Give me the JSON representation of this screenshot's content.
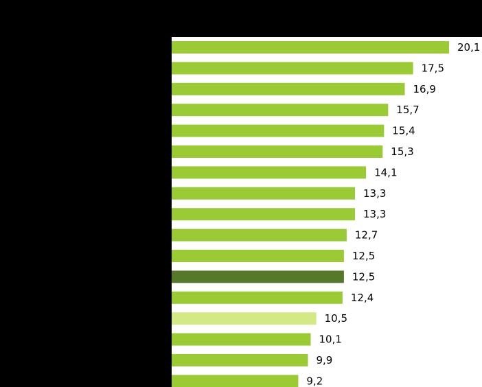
{
  "chart_data": {
    "type": "bar",
    "orientation": "horizontal",
    "categories": [
      "",
      "",
      "",
      "",
      "",
      "",
      "",
      "",
      "",
      "",
      "",
      "",
      "",
      "",
      "",
      "",
      ""
    ],
    "values": [
      20.1,
      17.5,
      16.9,
      15.7,
      15.4,
      15.3,
      14.1,
      13.3,
      13.3,
      12.7,
      12.5,
      12.5,
      12.4,
      10.5,
      10.1,
      9.9,
      9.2
    ],
    "value_labels": [
      "20,1",
      "17,5",
      "16,9",
      "15,7",
      "15,4",
      "15,3",
      "14,1",
      "13,3",
      "13,3",
      "12,7",
      "12,5",
      "12,5",
      "12,4",
      "10,5",
      "10,1",
      "9,9",
      "9,2"
    ],
    "xlim": [
      0,
      20.1
    ],
    "grid": false,
    "colors": {
      "default": "#9acb34",
      "highlight_dark": "#56782b",
      "highlight_light": "#d3e986",
      "plot_background": "#ffffff",
      "page_background": "#000000",
      "axis": "#000000"
    },
    "bar_color_keys": [
      "default",
      "default",
      "default",
      "default",
      "default",
      "default",
      "default",
      "default",
      "default",
      "default",
      "default",
      "highlight_dark",
      "default",
      "highlight_light",
      "default",
      "default",
      "default"
    ]
  }
}
